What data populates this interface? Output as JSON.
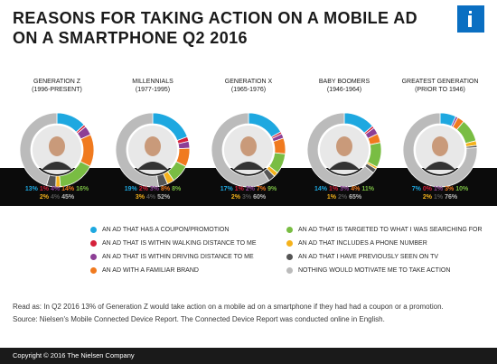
{
  "title_line1": "REASONS FOR TAKING ACTION ON A MOBILE AD",
  "title_line2": "ON A SMARTPHONE Q2 2016",
  "colors": {
    "coupon": "#1ea8e0",
    "walking": "#d5203a",
    "driving": "#8d3f96",
    "brand": "#f07a1f",
    "targeted": "#79bd43",
    "phone": "#f5b21b",
    "tv": "#555555",
    "nothing": "#bbbbbb"
  },
  "chart_data": {
    "type": "pie",
    "title": "REASONS FOR TAKING ACTION ON A MOBILE AD ON A SMARTPHONE Q2 2016",
    "categories": [
      "AN AD THAT HAS A COUPON/PROMOTION",
      "AN AD THAT IS WITHIN WALKING DISTANCE TO ME",
      "AN AD THAT IS WITHIN DRIVING DISTANCE TO ME",
      "AN AD WITH A FAMILIAR BRAND",
      "AN AD THAT IS TARGETED TO WHAT I WAS SEARCHING FOR",
      "AN AD THAT INCLUDES A PHONE NUMBER",
      "AN AD THAT I HAVE PREVIOUSLY SEEN ON TV",
      "NOTHING WOULD MOTIVATE ME TO TAKE ACTION"
    ],
    "series": [
      {
        "name": "GENERATION Z",
        "years": "(1996-PRESENT)",
        "values": [
          13,
          1,
          4,
          14,
          16,
          2,
          4,
          45
        ]
      },
      {
        "name": "MILLENNIALS",
        "years": "(1977-1995)",
        "values": [
          19,
          2,
          3,
          8,
          8,
          3,
          4,
          52
        ]
      },
      {
        "name": "GENERATION X",
        "years": "(1965-1976)",
        "values": [
          17,
          1,
          2,
          7,
          9,
          2,
          3,
          60
        ]
      },
      {
        "name": "BABY BOOMERS",
        "years": "(1946-1964)",
        "values": [
          14,
          1,
          3,
          4,
          11,
          1,
          2,
          65
        ]
      },
      {
        "name": "GREATEST GENERATION",
        "years": "(PRIOR TO 1946)",
        "values": [
          7,
          0,
          1,
          3,
          10,
          2,
          1,
          76
        ]
      }
    ]
  },
  "note_line1": "Read as: In Q2 2016 13% of Generation Z would take action on a mobile ad on a smartphone if they had had a coupon or a promotion.",
  "note_line2": "Source: Nielsen's Mobile Connected Device Report. The Connected Device Report was conducted online in English.",
  "footer": "Copyright © 2016 The Nielsen Company"
}
